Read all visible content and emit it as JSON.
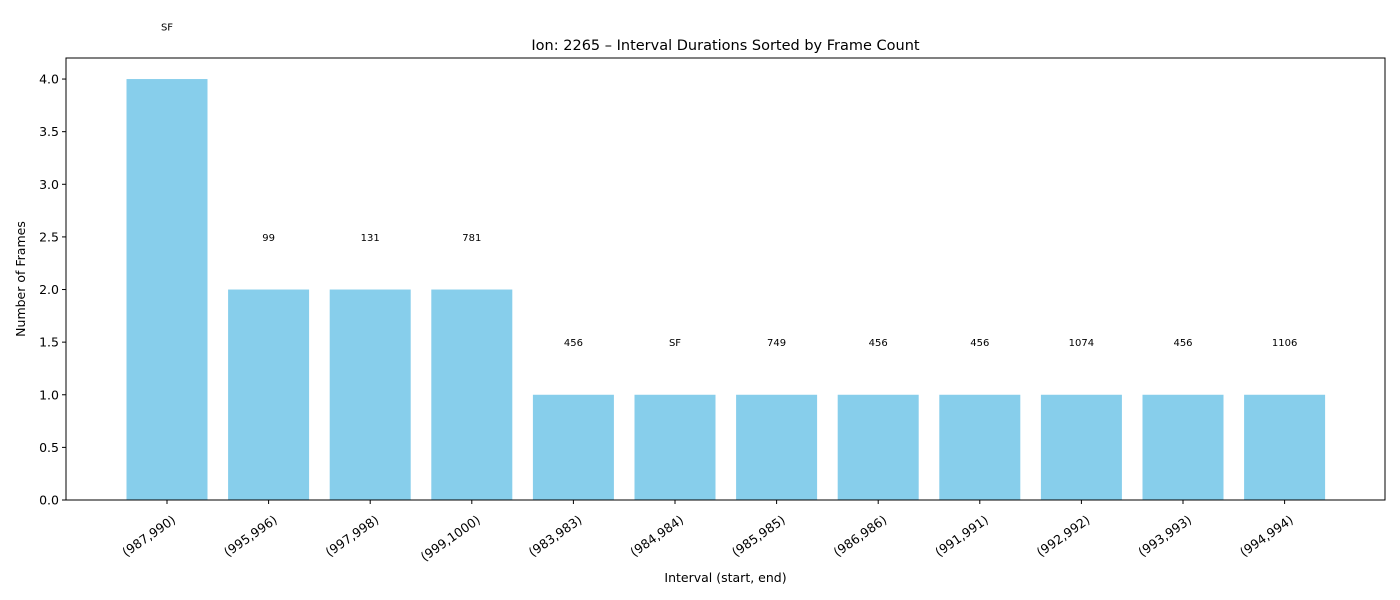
{
  "chart_data": {
    "type": "bar",
    "title": "Ion: 2265 – Interval Durations Sorted by Frame Count",
    "xlabel": "Interval (start, end)",
    "ylabel": "Number of Frames",
    "ylim": [
      0,
      4.2
    ],
    "yticks": [
      "0.0",
      "0.5",
      "1.0",
      "1.5",
      "2.0",
      "2.5",
      "3.0",
      "3.5",
      "4.0"
    ],
    "bar_color": "#87ceeb",
    "categories": [
      "(987,990)",
      "(995,996)",
      "(997,998)",
      "(999,1000)",
      "(983,983)",
      "(984,984)",
      "(985,985)",
      "(986,986)",
      "(991,991)",
      "(992,992)",
      "(993,993)",
      "(994,994)"
    ],
    "values": [
      4,
      2,
      2,
      2,
      1,
      1,
      1,
      1,
      1,
      1,
      1,
      1
    ],
    "annotations": [
      "SF",
      "99",
      "131",
      "781",
      "456",
      "SF",
      "749",
      "456",
      "456",
      "1074",
      "456",
      "1106"
    ],
    "grid": false,
    "legend": null
  }
}
